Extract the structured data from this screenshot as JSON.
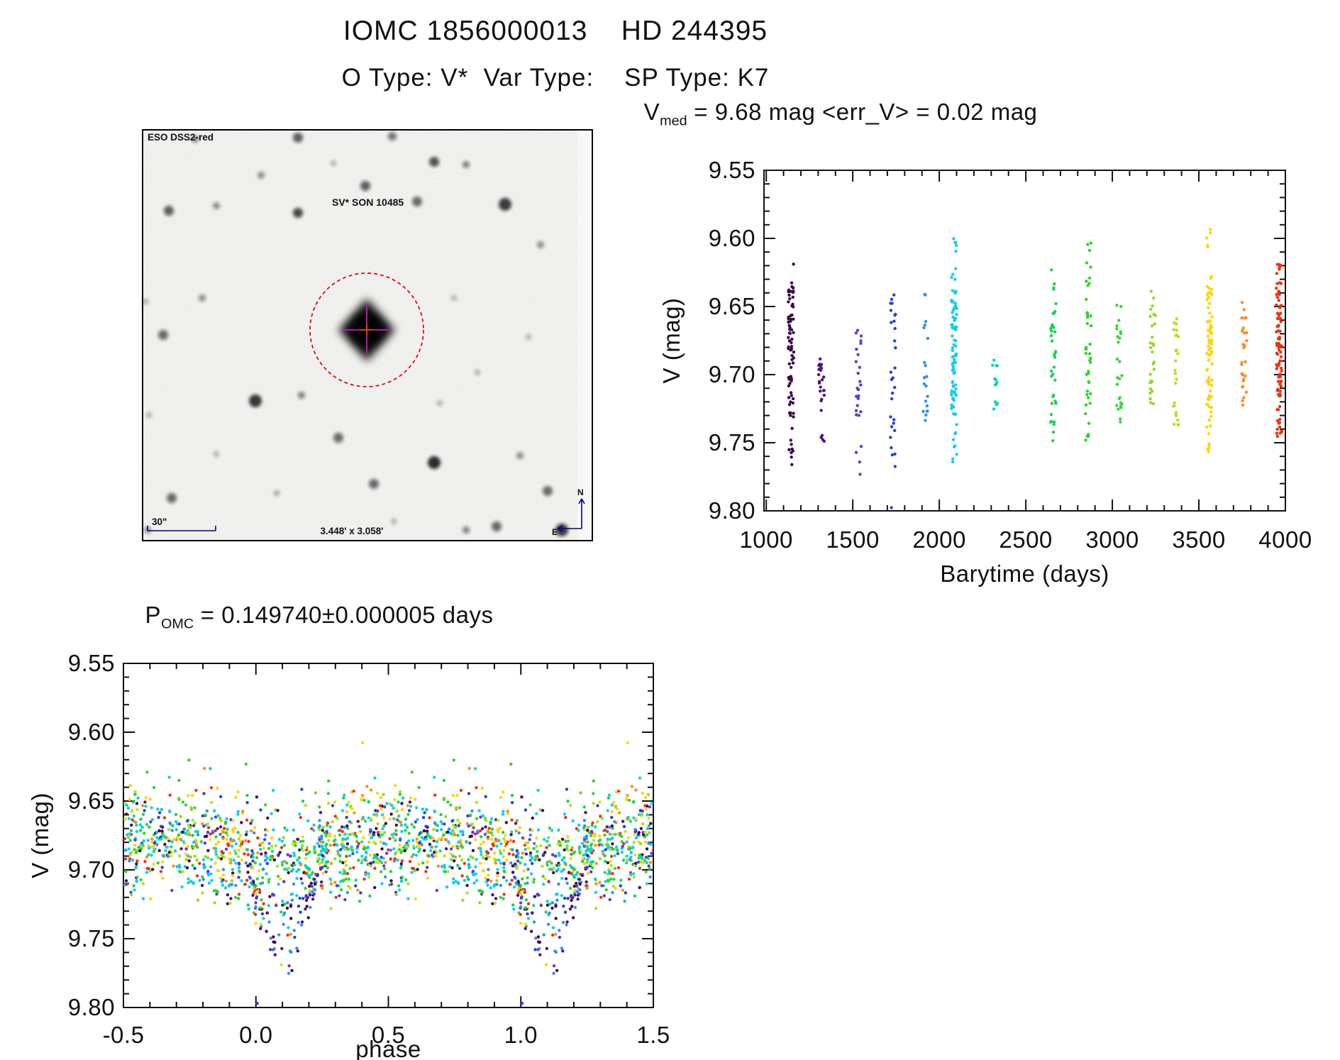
{
  "header": {
    "title": "IOMC 1856000013    HD 244395",
    "subtitle": "O Type: V*  Var Type:    SP Type: K7"
  },
  "finder_chart": {
    "survey_label": "ESO DSS2-red",
    "target_label": "SV* SON 10485",
    "scale_bar_label": "30\"",
    "fov_label": "3.448' x 3.058'",
    "compass": {
      "north": "N",
      "east": "E"
    },
    "label_color": "#00008b",
    "target_label_color": "#bb1111",
    "circle_color": "#dd0000",
    "crosshair_color": "#b019b0",
    "center_mark_color": "#e04010",
    "target_center": [
      317,
      283
    ],
    "circle_radius": 80,
    "stars": [
      [
        75,
        14,
        5,
        0.5
      ],
      [
        220,
        12,
        7,
        0.65
      ],
      [
        353,
        10,
        6,
        0.55
      ],
      [
        412,
        46,
        7,
        0.7
      ],
      [
        457,
        50,
        5,
        0.5
      ],
      [
        168,
        65,
        5,
        0.45
      ],
      [
        38,
        115,
        7,
        0.65
      ],
      [
        105,
        108,
        5,
        0.45
      ],
      [
        220,
        118,
        7,
        0.75
      ],
      [
        315,
        80,
        7,
        0.65
      ],
      [
        388,
        102,
        7,
        0.6
      ],
      [
        512,
        106,
        9,
        0.8
      ],
      [
        562,
        163,
        5,
        0.45
      ],
      [
        5,
        243,
        4,
        0.35
      ],
      [
        85,
        238,
        5,
        0.45
      ],
      [
        30,
        290,
        7,
        0.6
      ],
      [
        225,
        375,
        5,
        0.5
      ],
      [
        160,
        383,
        9,
        0.85
      ],
      [
        277,
        435,
        7,
        0.6
      ],
      [
        412,
        470,
        9,
        0.9
      ],
      [
        327,
        500,
        7,
        0.6
      ],
      [
        533,
        460,
        5,
        0.45
      ],
      [
        572,
        510,
        7,
        0.6
      ],
      [
        500,
        560,
        7,
        0.6
      ],
      [
        592,
        565,
        9,
        0.8
      ],
      [
        457,
        565,
        5,
        0.5
      ],
      [
        42,
        520,
        7,
        0.6
      ],
      [
        8,
        565,
        5,
        0.45
      ],
      [
        270,
        48,
        4,
        0.3
      ],
      [
        440,
        238,
        4,
        0.3
      ],
      [
        545,
        293,
        4,
        0.3
      ],
      [
        473,
        343,
        4,
        0.3
      ],
      [
        10,
        403,
        4,
        0.3
      ],
      [
        105,
        458,
        4,
        0.3
      ],
      [
        190,
        513,
        4,
        0.35
      ],
      [
        355,
        553,
        4,
        0.3
      ],
      [
        420,
        386,
        4,
        0.3
      ]
    ]
  },
  "chart_data": [
    {
      "id": "v_vs_barytime",
      "type": "scatter",
      "title": {
        "lead": "V",
        "sub": "med",
        "rest": " = 9.68 mag <err_V> = 0.02 mag"
      },
      "xlabel": "Barytime (days)",
      "ylabel": "V (mag)",
      "xlim": [
        987,
        4000
      ],
      "ylim": [
        9.55,
        9.8
      ],
      "y_axis_is_magnitude": true,
      "xticks": [
        1000,
        1500,
        2000,
        2500,
        3000,
        3500,
        4000
      ],
      "yticks": [
        9.55,
        9.6,
        9.65,
        9.7,
        9.75,
        9.8
      ],
      "x_minor_step": 100,
      "y_minor_step": 0.01,
      "point_jitter_days": 16,
      "clusters": [
        {
          "barytime": 1143,
          "color": "#3a0a45",
          "segments": [
            [
              9.615,
              9.627,
              1
            ],
            [
              9.632,
              9.705,
              55
            ],
            [
              9.705,
              9.732,
              14
            ],
            [
              9.737,
              9.782,
              9
            ]
          ]
        },
        {
          "barytime": 1319,
          "color": "#55127a",
          "segments": [
            [
              9.687,
              9.75,
              26
            ]
          ]
        },
        {
          "barytime": 1533,
          "color": "#5b3bd8",
          "segments": [
            [
              9.662,
              9.7,
              8
            ],
            [
              9.69,
              9.732,
              14
            ],
            [
              9.74,
              9.776,
              4
            ]
          ]
        },
        {
          "barytime": 1733,
          "color": "#2442d8",
          "segments": [
            [
              9.637,
              9.66,
              5
            ],
            [
              9.652,
              9.705,
              10
            ],
            [
              9.7,
              9.748,
              10
            ],
            [
              9.752,
              9.776,
              4
            ],
            [
              9.795,
              9.8,
              1
            ]
          ]
        },
        {
          "barytime": 1922,
          "color": "#2f8ff2",
          "segments": [
            [
              9.638,
              9.65,
              2
            ],
            [
              9.66,
              9.736,
              18
            ]
          ]
        },
        {
          "barytime": 2086,
          "color": "#10cdf5",
          "segments": [
            [
              9.598,
              9.635,
              9
            ],
            [
              9.638,
              9.725,
              75
            ],
            [
              9.727,
              9.776,
              12
            ]
          ]
        },
        {
          "barytime": 2324,
          "color": "#00d9b0",
          "segments": [
            [
              9.68,
              9.738,
              13
            ]
          ]
        },
        {
          "barytime": 2660,
          "color": "#16d353",
          "segments": [
            [
              9.617,
              9.642,
              4
            ],
            [
              9.645,
              9.73,
              30
            ],
            [
              9.732,
              9.753,
              6
            ]
          ]
        },
        {
          "barytime": 2861,
          "color": "#28d828",
          "segments": [
            [
              9.593,
              9.62,
              4
            ],
            [
              9.62,
              9.73,
              34
            ],
            [
              9.732,
              9.751,
              5
            ]
          ]
        },
        {
          "barytime": 3041,
          "color": "#3cd43c",
          "segments": [
            [
              9.648,
              9.738,
              26
            ]
          ]
        },
        {
          "barytime": 3234,
          "color": "#8edc20",
          "segments": [
            [
              9.637,
              9.728,
              30
            ]
          ]
        },
        {
          "barytime": 3369,
          "color": "#b4e018",
          "segments": [
            [
              9.648,
              9.662,
              2
            ],
            [
              9.662,
              9.738,
              24
            ]
          ]
        },
        {
          "barytime": 3561,
          "color": "#ffd400",
          "segments": [
            [
              9.59,
              9.632,
              7
            ],
            [
              9.635,
              9.725,
              68
            ],
            [
              9.727,
              9.757,
              12
            ]
          ]
        },
        {
          "barytime": 3762,
          "color": "#ff8c1e",
          "segments": [
            [
              9.642,
              9.654,
              2
            ],
            [
              9.656,
              9.728,
              28
            ]
          ]
        },
        {
          "barytime": 3963,
          "color": "#f2300e",
          "segments": [
            [
              9.612,
              9.632,
              6
            ],
            [
              9.632,
              9.746,
              85
            ]
          ]
        }
      ]
    },
    {
      "id": "phase_folded_lightcurve",
      "type": "scatter",
      "title": {
        "lead": "P",
        "sub": "OMC",
        "rest": " = 0.149740±0.000005 days"
      },
      "xlabel": "phase",
      "ylabel": "V (mag)",
      "xlim": [
        -0.5,
        1.5
      ],
      "ylim": [
        9.55,
        9.8
      ],
      "y_axis_is_magnitude": true,
      "xticks": [
        -0.5,
        0.0,
        0.5,
        1.0,
        1.5
      ],
      "yticks": [
        9.55,
        9.6,
        9.65,
        9.7,
        9.75,
        9.8
      ],
      "x_minor_step": 0.1,
      "y_minor_step": 0.01,
      "model": {
        "n_base_points": 1050,
        "mean_v": 9.6845,
        "cos_amplitude": 0.0095,
        "dim_phase": 0.075,
        "scatter_sigma": 0.0185,
        "scatter_clip": 0.046,
        "bright_outlier_fraction": 0.02,
        "bright_outlier_extra": 0.04,
        "eclipse": {
          "phase": 0.105,
          "half_width": 0.13,
          "member_fraction": 0.3,
          "depth": 0.072
        },
        "extra_points": [
          {
            "phase": 0.005,
            "v": 9.797,
            "color": "#2442d8"
          }
        ]
      },
      "palette": [
        {
          "color": "#3a0a45",
          "weight": 7
        },
        {
          "color": "#55127a",
          "weight": 3
        },
        {
          "color": "#5b3bd8",
          "weight": 4
        },
        {
          "color": "#2442d8",
          "weight": 4
        },
        {
          "color": "#2f8ff2",
          "weight": 6
        },
        {
          "color": "#10cdf5",
          "weight": 22
        },
        {
          "color": "#00d9b0",
          "weight": 3
        },
        {
          "color": "#16d353",
          "weight": 6
        },
        {
          "color": "#28d828",
          "weight": 7
        },
        {
          "color": "#3cd43c",
          "weight": 3
        },
        {
          "color": "#8edc20",
          "weight": 5
        },
        {
          "color": "#b4e018",
          "weight": 6
        },
        {
          "color": "#ffd400",
          "weight": 12
        },
        {
          "color": "#ff8c1e",
          "weight": 5
        },
        {
          "color": "#f2300e",
          "weight": 7
        }
      ],
      "eclipse_palette": [
        "#3a0a45",
        "#55127a",
        "#5b3bd8",
        "#2442d8",
        "#2f8ff2"
      ]
    }
  ]
}
